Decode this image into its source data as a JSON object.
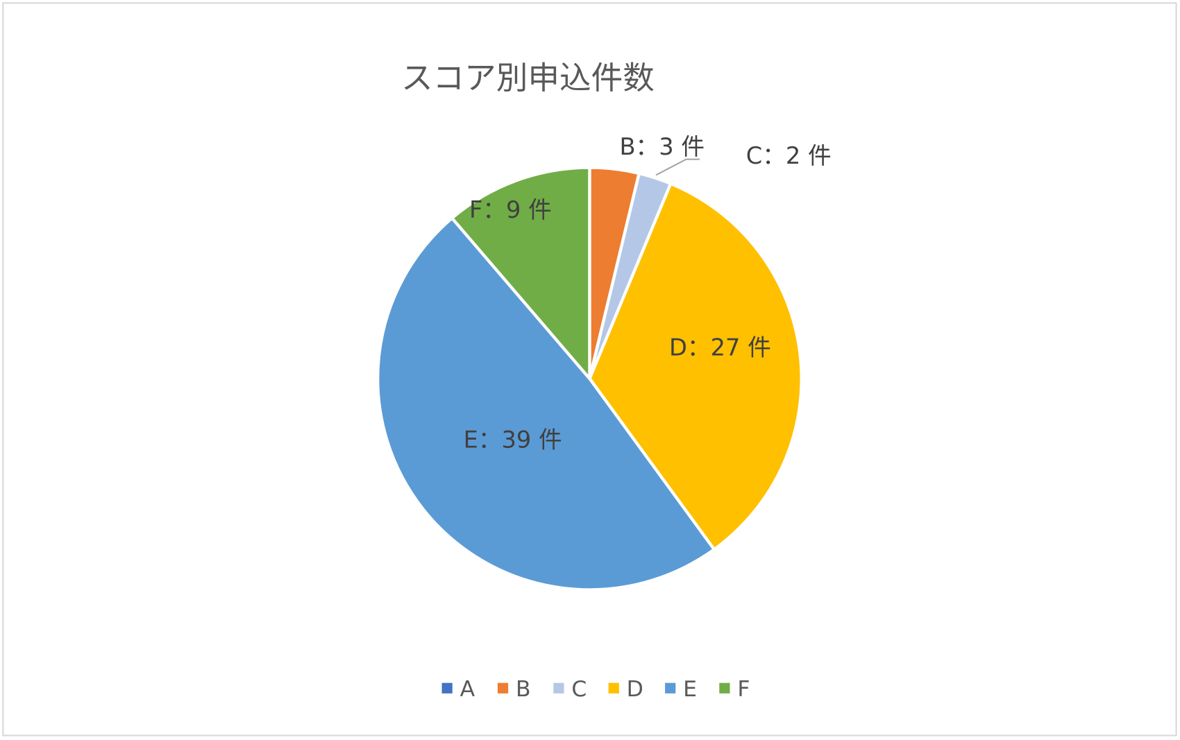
{
  "chart_data": {
    "type": "pie",
    "title": "スコア別申込件数",
    "categories": [
      "A",
      "B",
      "C",
      "D",
      "E",
      "F"
    ],
    "values": [
      0,
      3,
      2,
      27,
      39,
      9
    ],
    "data_labels": [
      "",
      "B：3 件",
      "C：2 件",
      "D：27 件",
      "E：39 件",
      "F：9 件"
    ],
    "colors": [
      "#4472C4",
      "#ED7D31",
      "#B4C7E7",
      "#FFC000",
      "#5B9BD5",
      "#70AD47"
    ],
    "start_angle_deg": 0,
    "direction": "clockwise",
    "legend_position": "bottom",
    "legend": [
      "A",
      "B",
      "C",
      "D",
      "E",
      "F"
    ]
  }
}
